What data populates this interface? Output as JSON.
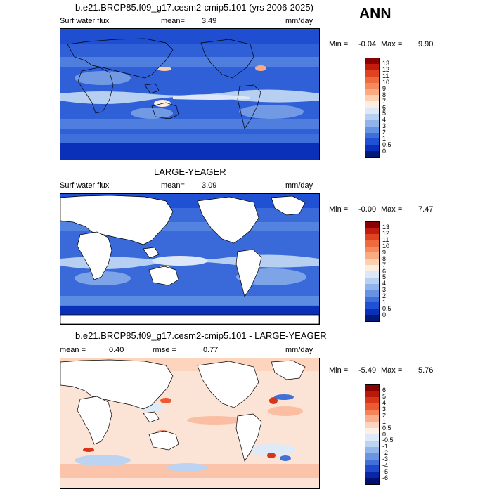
{
  "season": "ANN",
  "panels": [
    {
      "title": "b.e21.BRCP85.f09_g17.cesm2-cmip5.101 (yrs 2006-2025)",
      "left_label": "Surf water flux",
      "mean_label": "mean=",
      "mean_value": "3.49",
      "units": "mm/day",
      "min_label": "Min =",
      "min_value": "-0.04",
      "max_label": "Max =",
      "max_value": "9.90",
      "colorbar": {
        "labels": [
          "13",
          "12",
          "11",
          "10",
          "9",
          "8",
          "7",
          "6",
          "5",
          "4",
          "3",
          "2",
          "1",
          "0.5",
          "0"
        ],
        "colors": [
          "#8b0000",
          "#c21c0e",
          "#e0431f",
          "#ee6a3f",
          "#f58a5c",
          "#fbab82",
          "#fdd0b2",
          "#fdeee2",
          "#dce8f7",
          "#b7cff0",
          "#8fb3ea",
          "#6593e3",
          "#3f6fdb",
          "#2050d4",
          "#0a2fb8",
          "#001a7a"
        ]
      },
      "ocean_fill": "#2f60d8",
      "land_fill": "#2f60d8"
    },
    {
      "title": "LARGE-YEAGER",
      "left_label": "Surf water flux",
      "mean_label": "mean=",
      "mean_value": "3.09",
      "units": "mm/day",
      "min_label": "Min =",
      "min_value": "-0.00",
      "max_label": "Max =",
      "max_value": "7.47",
      "colorbar": {
        "labels": [
          "13",
          "12",
          "11",
          "10",
          "9",
          "8",
          "7",
          "6",
          "5",
          "4",
          "3",
          "2",
          "1",
          "0.5",
          "0"
        ],
        "colors": [
          "#8b0000",
          "#c21c0e",
          "#e0431f",
          "#ee6a3f",
          "#f58a5c",
          "#fbab82",
          "#fdd0b2",
          "#fdeee2",
          "#dce8f7",
          "#b7cff0",
          "#8fb3ea",
          "#6593e3",
          "#3f6fdb",
          "#2050d4",
          "#0a2fb8",
          "#001a7a"
        ]
      },
      "ocean_fill": "#3a6ad9",
      "land_fill": "#ffffff"
    },
    {
      "title": "b.e21.BRCP85.f09_g17.cesm2-cmip5.101 - LARGE-YEAGER",
      "left_label": "mean =",
      "left_value": "0.40",
      "rmse_label": "rmse =",
      "rmse_value": "0.77",
      "units": "mm/day",
      "min_label": "Min =",
      "min_value": "-5.49",
      "max_label": "Max =",
      "max_value": "5.76",
      "colorbar": {
        "labels": [
          "6",
          "5",
          "4",
          "3",
          "2",
          "1",
          "0.5",
          "0",
          "-0.5",
          "-1",
          "-2",
          "-3",
          "-4",
          "-5",
          "-6"
        ],
        "colors": [
          "#8b0000",
          "#b81a0a",
          "#d8361a",
          "#ec5a33",
          "#f6845a",
          "#fbae8c",
          "#fdd5bf",
          "#fef0e7",
          "#dfeaf8",
          "#bcd3f1",
          "#92b5ea",
          "#6a94e2",
          "#4270d9",
          "#2149cc",
          "#0a26a8",
          "#000f70"
        ]
      },
      "ocean_fill": "#fbe3d6",
      "land_fill": "#ffffff"
    }
  ]
}
